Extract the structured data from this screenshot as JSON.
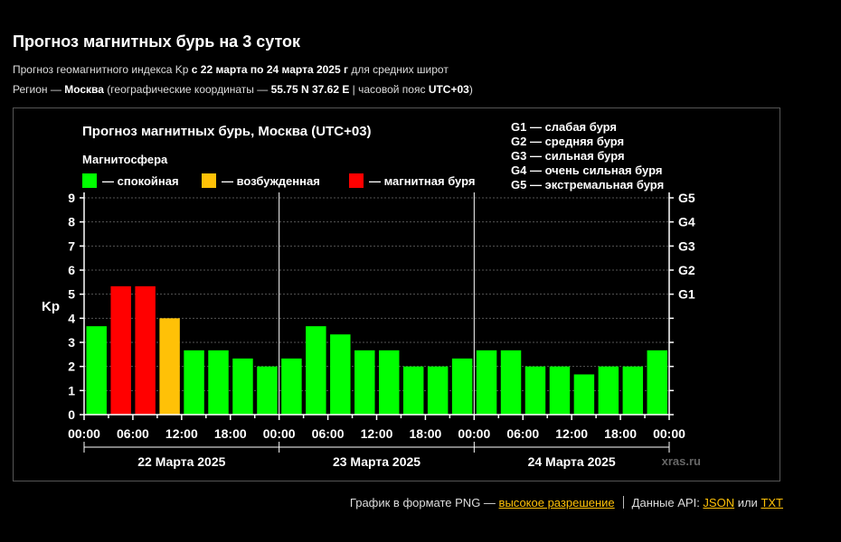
{
  "page": {
    "title": "Прогноз магнитных бурь на 3 суток",
    "sub1": {
      "a": "Прогноз геомагнитного индекса Kp ",
      "b": "с 22 марта по 24 марта 2025 г",
      "c": " для средних широт"
    },
    "sub2": {
      "a": "Регион — ",
      "b": "Москва",
      "c": " (географические координаты — ",
      "d": "55.75 N 37.62 E",
      "e": " | часовой пояс ",
      "f": "UTC+03",
      "g": ")"
    }
  },
  "footer": {
    "png_text": "График в формате PNG — ",
    "png_link": "высокое разрешение",
    "api_text": "Данные API: ",
    "json_link": "JSON",
    "or_text": " или ",
    "txt_link": "TXT"
  },
  "chart_data": {
    "type": "bar",
    "title": "Прогноз магнитных бурь, Москва (UTC+03)",
    "ylabel": "Kp",
    "ylim": [
      0,
      9
    ],
    "yticks": [
      "0",
      "1",
      "2",
      "3",
      "4",
      "5",
      "6",
      "7",
      "8",
      "9"
    ],
    "g_labels": [
      {
        "label": "G1",
        "kp": 5
      },
      {
        "label": "G2",
        "kp": 6
      },
      {
        "label": "G3",
        "kp": 7
      },
      {
        "label": "G4",
        "kp": 8
      },
      {
        "label": "G5",
        "kp": 9
      }
    ],
    "legend_title": "Магнитосфера",
    "legend": [
      {
        "label": "— спокойная",
        "color": "#00ff00"
      },
      {
        "label": "— возбужденная",
        "color": "#ffc107"
      },
      {
        "label": "— магнитная буря",
        "color": "#ff0000"
      }
    ],
    "g_legend": [
      "G1 — слабая буря",
      "G2 — средняя буря",
      "G3 — сильная буря",
      "G4 — очень сильная буря",
      "G5 — экстремальная буря"
    ],
    "xticks": [
      "00:00",
      "06:00",
      "12:00",
      "18:00",
      "00:00",
      "06:00",
      "12:00",
      "18:00",
      "00:00",
      "06:00",
      "12:00",
      "18:00",
      "00:00"
    ],
    "days": [
      "22 Марта 2025",
      "23 Марта 2025",
      "24 Марта 2025"
    ],
    "values": [
      3.67,
      5.33,
      5.33,
      4.0,
      2.67,
      2.67,
      2.33,
      2.0,
      2.33,
      3.67,
      3.33,
      2.67,
      2.67,
      2.0,
      2.0,
      2.33,
      2.67,
      2.67,
      2.0,
      2.0,
      1.67,
      2.0,
      2.0,
      2.67
    ],
    "colors": {
      "quiet": "#00ff00",
      "active": "#ffc107",
      "storm": "#ff0000"
    },
    "watermark": "xras.ru"
  }
}
